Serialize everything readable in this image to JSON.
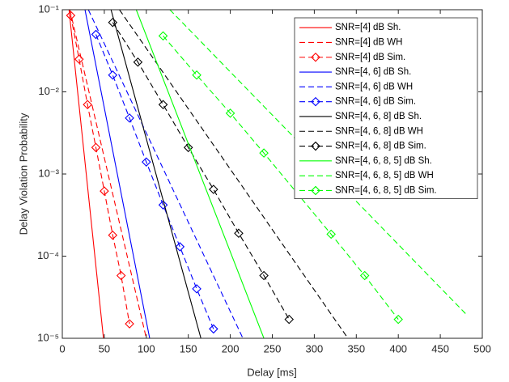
{
  "chart_data": {
    "type": "line",
    "xlabel": "Delay [ms]",
    "ylabel": "Delay Violation Probability",
    "xlim": [
      0,
      500
    ],
    "ylim": [
      1e-05,
      0.1
    ],
    "xticks": [
      0,
      50,
      100,
      150,
      200,
      250,
      300,
      350,
      400,
      450,
      500
    ],
    "yticks": [
      {
        "value": 1e-05,
        "label": "10⁻⁵"
      },
      {
        "value": 0.0001,
        "label": "10⁻⁴"
      },
      {
        "value": 0.001,
        "label": "10⁻³"
      },
      {
        "value": 0.01,
        "label": "10⁻²"
      },
      {
        "value": 0.1,
        "label": "10⁻¹"
      }
    ],
    "log_y": true,
    "legend": "upper right",
    "series": [
      {
        "name": "SNR=[4] dB Sh.",
        "color": "#ff0000",
        "dash": false,
        "marker": false,
        "x": [
          8,
          49
        ],
        "values": [
          0.1,
          1e-05
        ]
      },
      {
        "name": "SNR=[4] dB WH",
        "color": "#ff0000",
        "dash": true,
        "marker": false,
        "x": [
          9,
          100
        ],
        "values": [
          0.1,
          1e-05
        ]
      },
      {
        "name": "SNR=[4] dB Sim.",
        "color": "#ff0000",
        "dash": true,
        "marker": true,
        "x": [
          10,
          20,
          30,
          40,
          50,
          60,
          70,
          80
        ],
        "values": [
          0.085,
          0.025,
          0.007,
          0.0021,
          0.00062,
          0.00018,
          5.8e-05,
          1.5e-05
        ]
      },
      {
        "name": "SNR=[4, 6] dB Sh.",
        "color": "#0000ff",
        "dash": false,
        "marker": false,
        "x": [
          27,
          104
        ],
        "values": [
          0.1,
          1e-05
        ]
      },
      {
        "name": "SNR=[4, 6] dB WH",
        "color": "#0000ff",
        "dash": true,
        "marker": false,
        "x": [
          31,
          215
        ],
        "values": [
          0.1,
          1e-05
        ]
      },
      {
        "name": "SNR=[4, 6] dB Sim.",
        "color": "#0000ff",
        "dash": true,
        "marker": true,
        "x": [
          40,
          60,
          80,
          100,
          120,
          140,
          160,
          180
        ],
        "values": [
          0.05,
          0.016,
          0.0048,
          0.0014,
          0.00042,
          0.00013,
          4e-05,
          1.3e-05
        ]
      },
      {
        "name": "SNR=[4, 6, 8] dB Sh.",
        "color": "#000000",
        "dash": false,
        "marker": false,
        "x": [
          58,
          165
        ],
        "values": [
          0.1,
          1e-05
        ]
      },
      {
        "name": "SNR=[4, 6, 8] dB WH",
        "color": "#000000",
        "dash": true,
        "marker": false,
        "x": [
          68,
          340
        ],
        "values": [
          0.1,
          1e-05
        ]
      },
      {
        "name": "SNR=[4, 6, 8] dB Sim.",
        "color": "#000000",
        "dash": true,
        "marker": true,
        "x": [
          60,
          90,
          120,
          150,
          180,
          210,
          240,
          270
        ],
        "values": [
          0.07,
          0.023,
          0.007,
          0.0021,
          0.00065,
          0.00019,
          5.8e-05,
          1.7e-05
        ]
      },
      {
        "name": "SNR=[4, 6, 8, 5] dB Sh.",
        "color": "#00ff00",
        "dash": false,
        "marker": false,
        "x": [
          88,
          240
        ],
        "values": [
          0.1,
          1e-05
        ]
      },
      {
        "name": "SNR=[4, 6, 8, 5] dB WH",
        "color": "#00ff00",
        "dash": true,
        "marker": false,
        "x": [
          128,
          480
        ],
        "values": [
          0.1,
          2e-05
        ]
      },
      {
        "name": "SNR=[4, 6, 8, 5] dB Sim.",
        "color": "#00ff00",
        "dash": true,
        "marker": true,
        "x": [
          120,
          160,
          200,
          240,
          320,
          360,
          400
        ],
        "values": [
          0.048,
          0.016,
          0.0055,
          0.0018,
          0.000185,
          5.8e-05,
          1.7e-05
        ]
      }
    ]
  }
}
